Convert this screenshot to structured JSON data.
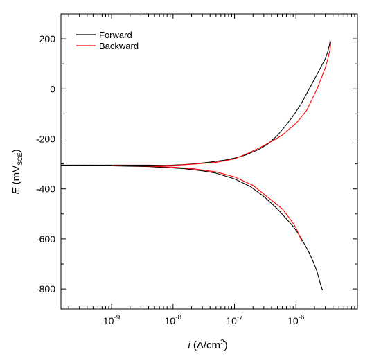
{
  "chart_data": {
    "type": "line",
    "title": "",
    "xlabel": {
      "var": "i",
      "rest": " (A/cm",
      "sup": "2",
      "close": ")"
    },
    "ylabel": {
      "var": "E",
      "rest": " (mV",
      "sub": "SCE",
      "close": ")"
    },
    "xscale": "log",
    "xlim": [
      1.5e-10,
      1e-05
    ],
    "ylim": [
      -880,
      300
    ],
    "xticks": [
      {
        "value": 1e-09,
        "base": "10",
        "exp": "-9"
      },
      {
        "value": 1e-08,
        "base": "10",
        "exp": "-8"
      },
      {
        "value": 1e-07,
        "base": "10",
        "exp": "-7"
      },
      {
        "value": 1e-06,
        "base": "10",
        "exp": "-6"
      }
    ],
    "yticks": [
      {
        "value": 200,
        "label": "200"
      },
      {
        "value": 0,
        "label": "0"
      },
      {
        "value": -200,
        "label": "-200"
      },
      {
        "value": -400,
        "label": "-400"
      },
      {
        "value": -600,
        "label": "-600"
      },
      {
        "value": -800,
        "label": "-800"
      }
    ],
    "grid": false,
    "legend": "top-left",
    "series": [
      {
        "name": "Forward",
        "color": "#000000",
        "points": [
          [
            2.7e-06,
            -805
          ],
          [
            2.5e-06,
            -780
          ],
          [
            2.2e-06,
            -730
          ],
          [
            1.9e-06,
            -690
          ],
          [
            1.6e-06,
            -650
          ],
          [
            1.3e-06,
            -610
          ],
          [
            1.1e-06,
            -580
          ],
          [
            9e-07,
            -550
          ],
          [
            7e-07,
            -520
          ],
          [
            5e-07,
            -480
          ],
          [
            3e-07,
            -430
          ],
          [
            1.8e-07,
            -390
          ],
          [
            1e-07,
            -360
          ],
          [
            5e-08,
            -337
          ],
          [
            3e-08,
            -328
          ],
          [
            1.5e-08,
            -319
          ],
          [
            8e-09,
            -315
          ],
          [
            4e-09,
            -311
          ],
          [
            1e-09,
            -308
          ],
          [
            1.5e-10,
            -305
          ],
          [
            1e-09,
            -305
          ],
          [
            4e-09,
            -305
          ],
          [
            8e-09,
            -306
          ],
          [
            1.5e-08,
            -303
          ],
          [
            2.2e-08,
            -300
          ],
          [
            4e-08,
            -293
          ],
          [
            7e-08,
            -285
          ],
          [
            1e-07,
            -277
          ],
          [
            1.5e-07,
            -265
          ],
          [
            2.5e-07,
            -242
          ],
          [
            3.5e-07,
            -220
          ],
          [
            5e-07,
            -186
          ],
          [
            7e-07,
            -143
          ],
          [
            9e-07,
            -108
          ],
          [
            1.2e-06,
            -62
          ],
          [
            1.5e-06,
            -18
          ],
          [
            1.8e-06,
            18
          ],
          [
            2.2e-06,
            58
          ],
          [
            2.6e-06,
            92
          ],
          [
            3e-06,
            120
          ],
          [
            3.3e-06,
            150
          ],
          [
            3.5e-06,
            175
          ],
          [
            3.6e-06,
            195
          ]
        ]
      },
      {
        "name": "Backward",
        "color": "#ff0000",
        "points": [
          [
            3.7e-06,
            190
          ],
          [
            3.6e-06,
            160
          ],
          [
            3.3e-06,
            120
          ],
          [
            3e-06,
            85
          ],
          [
            2.6e-06,
            45
          ],
          [
            2.2e-06,
            0
          ],
          [
            1.8e-06,
            -45
          ],
          [
            1.5e-06,
            -85
          ],
          [
            1.2e-06,
            -115
          ],
          [
            1e-06,
            -138
          ],
          [
            8e-07,
            -158
          ],
          [
            6e-07,
            -185
          ],
          [
            4e-07,
            -210
          ],
          [
            2.5e-07,
            -237
          ],
          [
            1.5e-07,
            -262
          ],
          [
            1e-07,
            -280
          ],
          [
            5e-08,
            -294
          ],
          [
            2.2e-08,
            -301
          ],
          [
            1e-08,
            -306
          ],
          [
            4e-09,
            -308
          ],
          [
            1.5e-09,
            -308
          ],
          [
            1e-09,
            -307
          ],
          [
            4e-09,
            -309
          ],
          [
            1e-08,
            -313
          ],
          [
            2.2e-08,
            -320
          ],
          [
            5e-08,
            -332
          ],
          [
            1e-07,
            -352
          ],
          [
            2e-07,
            -386
          ],
          [
            4e-07,
            -445
          ],
          [
            6e-07,
            -480
          ],
          [
            8e-07,
            -520
          ],
          [
            1e-06,
            -555
          ],
          [
            1.15e-06,
            -590
          ],
          [
            1.25e-06,
            -610
          ]
        ]
      }
    ]
  }
}
